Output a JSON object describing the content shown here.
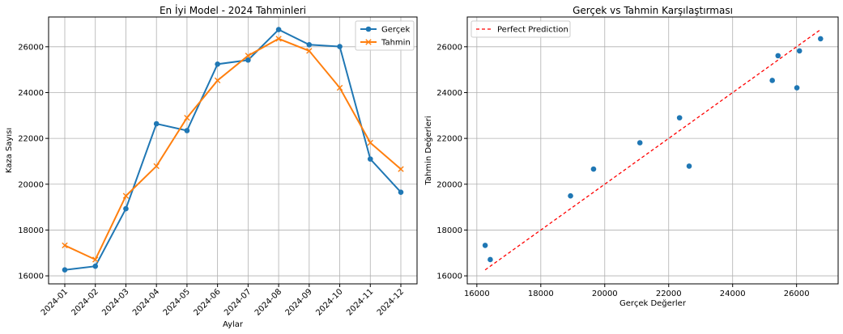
{
  "chart_data": [
    {
      "type": "line",
      "title": "En İyi Model - 2024 Tahminleri",
      "xlabel": "Aylar",
      "ylabel": "Kaza Sayısı",
      "categories": [
        "2024-01",
        "2024-02",
        "2024-03",
        "2024-04",
        "2024-05",
        "2024-06",
        "2024-07",
        "2024-08",
        "2024-09",
        "2024-10",
        "2024-11",
        "2024-12"
      ],
      "ylim": [
        15650,
        27300
      ],
      "yticks": [
        16000,
        18000,
        20000,
        22000,
        24000,
        26000
      ],
      "grid": true,
      "legend_position": "top-right",
      "series": [
        {
          "name": "Gerçek",
          "marker": "circle",
          "color": "#1f77b4",
          "values": [
            16260,
            16420,
            18930,
            22640,
            22340,
            25240,
            25420,
            26750,
            26090,
            26010,
            21100,
            19650
          ]
        },
        {
          "name": "Tahmin",
          "marker": "x",
          "color": "#ff7f0e",
          "values": [
            17330,
            16710,
            19490,
            20790,
            22900,
            24530,
            25610,
            26350,
            25820,
            24210,
            21810,
            20660
          ]
        }
      ]
    },
    {
      "type": "scatter",
      "title": "Gerçek vs Tahmin Karşılaştırması",
      "xlabel": "Gerçek Değerler",
      "ylabel": "Tahmin Değerleri",
      "xlim": [
        15700,
        27300
      ],
      "ylim": [
        15650,
        27300
      ],
      "xticks": [
        16000,
        18000,
        20000,
        22000,
        24000,
        26000
      ],
      "yticks": [
        16000,
        18000,
        20000,
        22000,
        24000,
        26000
      ],
      "grid": true,
      "legend_position": "top-left",
      "points": {
        "color": "#1f77b4",
        "x": [
          16260,
          16420,
          18930,
          22640,
          22340,
          25240,
          25420,
          26750,
          26090,
          26010,
          21100,
          19650
        ],
        "y": [
          17330,
          16710,
          19490,
          20790,
          22900,
          24530,
          25610,
          26350,
          25820,
          24210,
          21810,
          20660
        ]
      },
      "reference_line": {
        "name": "Perfect Prediction",
        "color": "#ff0000",
        "style": "dashed",
        "from": [
          16260,
          16260
        ],
        "to": [
          26750,
          26750
        ]
      }
    }
  ]
}
